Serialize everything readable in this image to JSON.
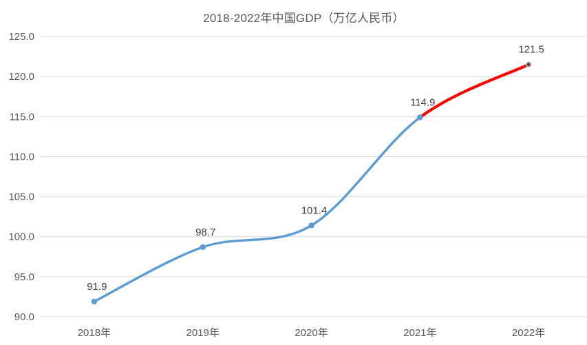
{
  "chart_data": {
    "type": "line",
    "title": "2018-2022年中国GDP（万亿人民币）",
    "categories": [
      "2018年",
      "2019年",
      "2020年",
      "2021年",
      "2022年"
    ],
    "series": [
      {
        "name": "GDP",
        "values": [
          91.9,
          98.7,
          101.4,
          114.9,
          121.5
        ]
      }
    ],
    "data_labels": [
      "91.9",
      "98.7",
      "101.4",
      "114.9",
      "121.5"
    ],
    "xlabel": "",
    "ylabel": "",
    "ylim": [
      90.0,
      125.0
    ],
    "ytick_step": 5.0,
    "ytick_labels": [
      "90.0",
      "95.0",
      "100.0",
      "105.0",
      "110.0",
      "115.0",
      "120.0",
      "125.0"
    ],
    "grid": true,
    "smooth": true,
    "legend_position": "none",
    "highlight_segment": {
      "from_index": 3,
      "to_index": 4
    },
    "colors": {
      "line_main": "#5B9BD5",
      "line_highlight": "#FF0000",
      "marker_main": "#5B9BD5",
      "marker_last_fill": "#922B21",
      "marker_last_stroke": "#9DC3E6",
      "gridline": "#D9D9D9",
      "axis_label": "#595959",
      "data_label": "#404040",
      "data_label_highlight": "#FF0000",
      "title": "#595959"
    }
  }
}
